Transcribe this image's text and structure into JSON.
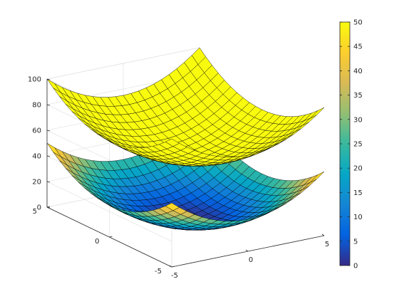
{
  "chart_data": {
    "type": "surface3d",
    "title": "",
    "xlabel": "",
    "ylabel": "",
    "zlabel": "",
    "grid": true,
    "colormap": "parula",
    "x_range": [
      -5,
      5
    ],
    "y_range": [
      -5,
      5
    ],
    "mesh_points_per_axis": 21,
    "z_axis": {
      "min": 0,
      "max": 100,
      "ticks": [
        0,
        20,
        40,
        60,
        80,
        100
      ]
    },
    "x_ticks": [
      -5,
      0,
      5
    ],
    "y_ticks": [
      -5,
      0,
      5
    ],
    "series": [
      {
        "formula": "z = x^2 + y^2",
        "z_offset": 50,
        "z_range": [
          50,
          100
        ],
        "color": "#f9fb0e"
      },
      {
        "formula": "z = x^2 + y^2",
        "z_offset": 0,
        "z_range": [
          0,
          50
        ]
      }
    ],
    "colorbar": {
      "range": [
        0,
        50
      ],
      "ticks": [
        0,
        5,
        10,
        15,
        20,
        25,
        30,
        35,
        40,
        45,
        50
      ],
      "placement": "right",
      "colors": [
        "#352a87",
        "#0363e1",
        "#1485d4",
        "#06a7c6",
        "#38b99e",
        "#92bf73",
        "#d9ba56",
        "#fcce2e",
        "#f9fb0e"
      ]
    }
  }
}
